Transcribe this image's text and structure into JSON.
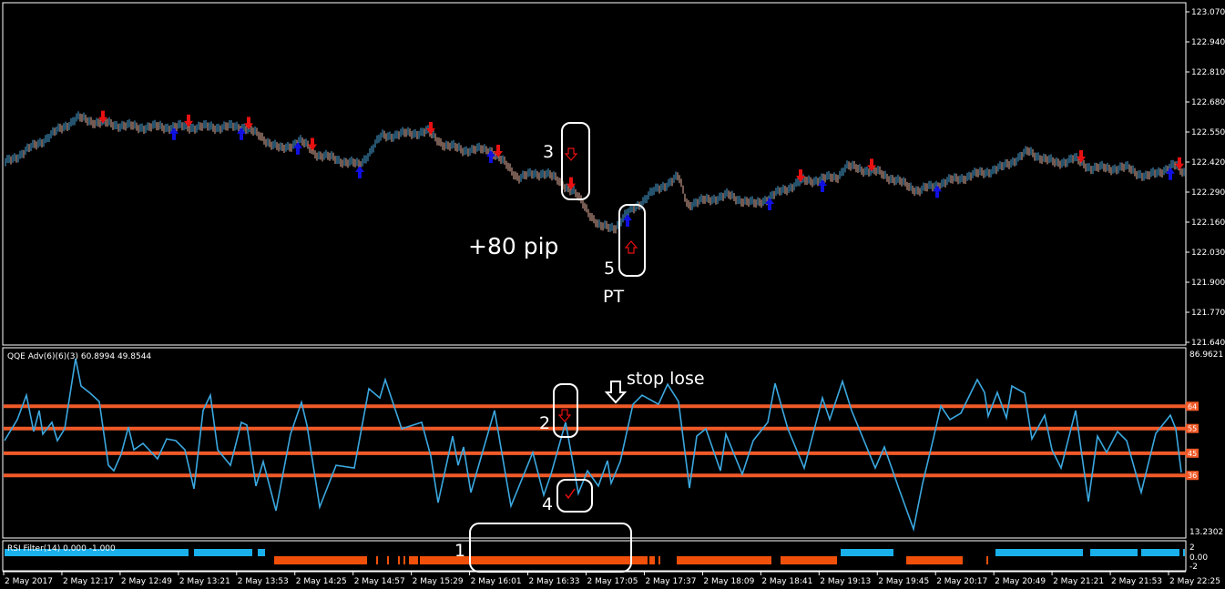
{
  "chart_data": [
    {
      "type": "bar-chart-price",
      "symbol_timeframe_hidden": true,
      "y_axis_ticks": [
        "123.070",
        "122.940",
        "122.810",
        "122.680",
        "122.550",
        "122.420",
        "122.290",
        "122.160",
        "122.030",
        "121.900",
        "121.770",
        "121.640"
      ],
      "ylim": [
        121.64,
        123.07
      ],
      "bar_colors": {
        "up": "#4aa3d8",
        "down": "#e8b4a0"
      },
      "price_path": [
        [
          "11:45",
          122.412
        ],
        [
          "12:02",
          122.491
        ],
        [
          "12:25",
          122.609
        ],
        [
          "12:37",
          122.589
        ],
        [
          "12:57",
          122.57
        ],
        [
          "13:22",
          122.57
        ],
        [
          "13:57",
          122.57
        ],
        [
          "14:17",
          122.471
        ],
        [
          "14:27",
          122.511
        ],
        [
          "14:37",
          122.451
        ],
        [
          "15:00",
          122.404
        ],
        [
          "15:12",
          122.53
        ],
        [
          "15:37",
          122.55
        ],
        [
          "15:47",
          122.491
        ],
        [
          "15:57",
          122.471
        ],
        [
          "16:12",
          122.471
        ],
        [
          "16:27",
          122.353
        ],
        [
          "16:42",
          122.373
        ],
        [
          "16:57",
          122.294
        ],
        [
          "17:12",
          122.136
        ],
        [
          "17:20",
          122.136
        ],
        [
          "17:27",
          122.195
        ],
        [
          "17:42",
          122.294
        ],
        [
          "17:55",
          122.353
        ],
        [
          "18:00",
          122.235
        ],
        [
          "18:22",
          122.274
        ],
        [
          "18:37",
          122.235
        ],
        [
          "18:47",
          122.274
        ],
        [
          "19:02",
          122.333
        ],
        [
          "19:22",
          122.353
        ],
        [
          "19:27",
          122.4
        ],
        [
          "19:45",
          122.373
        ],
        [
          "20:07",
          122.294
        ],
        [
          "20:22",
          122.333
        ],
        [
          "20:52",
          122.392
        ],
        [
          "21:07",
          122.463
        ],
        [
          "21:22",
          122.412
        ],
        [
          "21:32",
          122.432
        ],
        [
          "21:42",
          122.392
        ],
        [
          "22:02",
          122.392
        ],
        [
          "22:12",
          122.353
        ],
        [
          "22:27",
          122.404
        ],
        [
          "22:32",
          122.373
        ]
      ],
      "signals": [
        {
          "time": "12:39",
          "type": "sell"
        },
        {
          "time": "13:18",
          "type": "buy"
        },
        {
          "time": "13:26",
          "type": "sell"
        },
        {
          "time": "13:55",
          "type": "buy"
        },
        {
          "time": "13:59",
          "type": "sell"
        },
        {
          "time": "14:26",
          "type": "buy"
        },
        {
          "time": "14:34",
          "type": "sell"
        },
        {
          "time": "15:00",
          "type": "buy"
        },
        {
          "time": "15:39",
          "type": "sell"
        },
        {
          "time": "16:12",
          "type": "buy"
        },
        {
          "time": "16:16",
          "type": "sell"
        },
        {
          "time": "16:56",
          "type": "sell"
        },
        {
          "time": "17:27",
          "type": "buy"
        },
        {
          "time": "18:45",
          "type": "buy"
        },
        {
          "time": "19:02",
          "type": "sell"
        },
        {
          "time": "19:14",
          "type": "buy"
        },
        {
          "time": "19:41",
          "type": "sell"
        },
        {
          "time": "20:17",
          "type": "buy"
        },
        {
          "time": "21:36",
          "type": "sell"
        },
        {
          "time": "22:25",
          "type": "buy"
        },
        {
          "time": "22:30",
          "type": "sell"
        }
      ],
      "signal_colors": {
        "buy": "#1010e0",
        "sell": "#e81010"
      },
      "annotations": {
        "label_3": "3",
        "label_5": "5",
        "label_pt": "PT",
        "label_pips": "+80 pip"
      }
    },
    {
      "type": "line",
      "title": "QQE Adv(6)(6)(3) 60.8994 49.8544",
      "y_axis_max_label": "86.9621",
      "y_axis_min_label": "13.2302",
      "ylim": [
        13.2302,
        86.9621
      ],
      "line_color": "#3ba8e0",
      "level_color": "#f05a28",
      "levels": [
        {
          "value": 64,
          "label": "64"
        },
        {
          "value": 55,
          "label": "55"
        },
        {
          "value": 45,
          "label": "45"
        },
        {
          "value": 36,
          "label": "36"
        }
      ],
      "series": [
        [
          "11:45",
          50.1
        ],
        [
          "11:52",
          58.6
        ],
        [
          "11:57",
          68.5
        ],
        [
          "12:01",
          53.8
        ],
        [
          "12:04",
          62.3
        ],
        [
          "12:06",
          52.7
        ],
        [
          "12:11",
          57.5
        ],
        [
          "12:14",
          50.1
        ],
        [
          "12:18",
          54.9
        ],
        [
          "12:24",
          83.3
        ],
        [
          "12:27",
          72.2
        ],
        [
          "12:32",
          69.3
        ],
        [
          "12:37",
          65.9
        ],
        [
          "12:42",
          40.1
        ],
        [
          "12:45",
          37.9
        ],
        [
          "12:49",
          44.6
        ],
        [
          "12:53",
          55.6
        ],
        [
          "12:56",
          46.4
        ],
        [
          "13:01",
          49.0
        ],
        [
          "13:09",
          42.7
        ],
        [
          "13:14",
          50.8
        ],
        [
          "13:19",
          50.1
        ],
        [
          "13:24",
          46.4
        ],
        [
          "13:29",
          30.6
        ],
        [
          "13:34",
          62.3
        ],
        [
          "13:38",
          68.5
        ],
        [
          "13:42",
          46.4
        ],
        [
          "13:49",
          40.1
        ],
        [
          "13:55",
          57.5
        ],
        [
          "13:58",
          56.4
        ],
        [
          "14:03",
          31.7
        ],
        [
          "14:07",
          41.6
        ],
        [
          "14:14",
          21.7
        ],
        [
          "14:22",
          52.7
        ],
        [
          "14:28",
          65.6
        ],
        [
          "14:31",
          56.4
        ],
        [
          "14:38",
          23.2
        ],
        [
          "14:47",
          40.1
        ],
        [
          "14:57",
          39.0
        ],
        [
          "15:05",
          71.1
        ],
        [
          "15:11",
          67.4
        ],
        [
          "15:14",
          74.8
        ],
        [
          "15:23",
          54.9
        ],
        [
          "15:34",
          57.5
        ],
        [
          "15:39",
          43.8
        ],
        [
          "15:43",
          25.0
        ],
        [
          "15:51",
          51.9
        ],
        [
          "15:54",
          40.1
        ],
        [
          "15:57",
          47.5
        ],
        [
          "16:01",
          29.1
        ],
        [
          "16:14",
          62.3
        ],
        [
          "16:23",
          23.6
        ],
        [
          "16:35",
          45.3
        ],
        [
          "16:41",
          28.0
        ],
        [
          "16:45",
          36.5
        ],
        [
          "16:53",
          57.5
        ],
        [
          "17:00",
          28.7
        ],
        [
          "17:05",
          37.9
        ],
        [
          "17:11",
          31.7
        ],
        [
          "17:16",
          42.0
        ],
        [
          "17:18",
          32.8
        ],
        [
          "17:23",
          41.6
        ],
        [
          "17:30",
          64.8
        ],
        [
          "17:35",
          68.5
        ],
        [
          "17:44",
          64.8
        ],
        [
          "17:49",
          72.9
        ],
        [
          "17:55",
          65.9
        ],
        [
          "18:01",
          30.9
        ],
        [
          "18:05",
          51.9
        ],
        [
          "18:10",
          54.9
        ],
        [
          "18:18",
          37.9
        ],
        [
          "18:21",
          52.7
        ],
        [
          "18:30",
          36.5
        ],
        [
          "18:36",
          50.1
        ],
        [
          "18:44",
          57.5
        ],
        [
          "18:48",
          73.3
        ],
        [
          "18:55",
          54.9
        ],
        [
          "19:04",
          39.0
        ],
        [
          "19:14",
          67.4
        ],
        [
          "19:18",
          58.6
        ],
        [
          "19:25",
          74.1
        ],
        [
          "19:30",
          62.3
        ],
        [
          "19:43",
          39.0
        ],
        [
          "19:48",
          47.5
        ],
        [
          "19:56",
          30.6
        ],
        [
          "20:04",
          14.3
        ],
        [
          "20:09",
          32.8
        ],
        [
          "20:15",
          51.2
        ],
        [
          "20:19",
          64.1
        ],
        [
          "20:24",
          58.6
        ],
        [
          "20:30",
          61.2
        ],
        [
          "20:39",
          74.8
        ],
        [
          "20:43",
          69.6
        ],
        [
          "20:45",
          60.0
        ],
        [
          "20:50",
          69.6
        ],
        [
          "20:55",
          59.3
        ],
        [
          "20:58",
          72.2
        ],
        [
          "21:05",
          69.3
        ],
        [
          "21:09",
          50.8
        ],
        [
          "21:16",
          60.4
        ],
        [
          "21:20",
          46.4
        ],
        [
          "21:25",
          39.0
        ],
        [
          "21:33",
          62.3
        ],
        [
          "21:40",
          25.4
        ],
        [
          "21:45",
          51.9
        ],
        [
          "21:50",
          45.3
        ],
        [
          "21:56",
          53.8
        ],
        [
          "22:01",
          50.1
        ],
        [
          "22:09",
          29.1
        ],
        [
          "22:17",
          53.0
        ],
        [
          "22:25",
          60.4
        ],
        [
          "22:28",
          54.9
        ],
        [
          "22:31",
          37.2
        ]
      ],
      "annotations": {
        "label_2": "2",
        "label_4": "4",
        "label_stop": "stop lose"
      }
    },
    {
      "type": "bar",
      "title": "RSI Filter(14) 0.000 -1.000",
      "y_axis_ticks": [
        "2",
        "0.00",
        "-2"
      ],
      "colors": {
        "bull": "#1ab0ec",
        "bear": "#f0500a"
      },
      "bull_segments": [
        [
          "11:45",
          "13:26"
        ],
        [
          "13:29",
          "14:01"
        ],
        [
          "14:04",
          "14:08"
        ],
        [
          "19:24",
          "19:53"
        ],
        [
          "20:49",
          "21:37"
        ],
        [
          "21:41",
          "22:07"
        ],
        [
          "22:09",
          "22:30"
        ],
        [
          "22:32",
          "22:33"
        ]
      ],
      "bear_segments": [
        [
          "14:13",
          "15:04"
        ],
        [
          "15:09",
          "15:09"
        ],
        [
          "15:15",
          "15:15"
        ],
        [
          "15:21",
          "15:21"
        ],
        [
          "15:24",
          "15:24"
        ],
        [
          "15:27",
          "15:32"
        ],
        [
          "15:33",
          "17:38"
        ],
        [
          "17:39",
          "17:42"
        ],
        [
          "17:44",
          "17:45"
        ],
        [
          "17:54",
          "18:46"
        ],
        [
          "18:51",
          "19:22"
        ],
        [
          "20:00",
          "20:31"
        ],
        [
          "20:44",
          "20:44"
        ]
      ],
      "annotations": {
        "label_1": "1"
      }
    }
  ],
  "time_axis": {
    "start_time": "11:45",
    "labels": [
      "2 May 2017",
      "2 May 12:17",
      "2 May 12:49",
      "2 May 13:21",
      "2 May 13:53",
      "2 May 14:25",
      "2 May 14:57",
      "2 May 15:29",
      "2 May 16:01",
      "2 May 16:33",
      "2 May 17:05",
      "2 May 17:37",
      "2 May 18:09",
      "2 May 18:41",
      "2 May 19:13",
      "2 May 19:45",
      "2 May 20:17",
      "2 May 20:49",
      "2 May 21:21",
      "2 May 21:53",
      "2 May 22:25"
    ]
  }
}
